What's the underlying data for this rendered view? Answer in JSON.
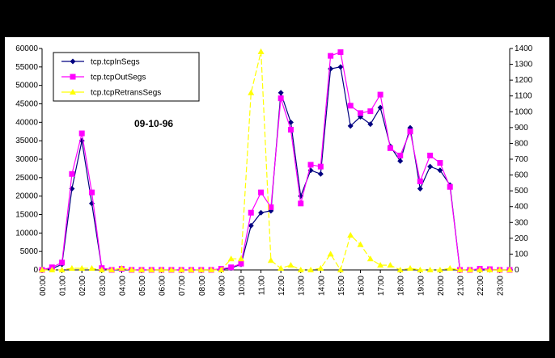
{
  "chart_data": {
    "type": "line",
    "annotation": "09-10-96",
    "x": [
      "00:00",
      "00:30",
      "01:00",
      "01:30",
      "02:00",
      "02:30",
      "03:00",
      "03:30",
      "04:00",
      "04:30",
      "05:00",
      "05:30",
      "06:00",
      "06:30",
      "07:00",
      "07:30",
      "08:00",
      "08:30",
      "09:00",
      "09:30",
      "10:00",
      "10:30",
      "11:00",
      "11:30",
      "12:00",
      "12:30",
      "13:00",
      "13:30",
      "14:00",
      "14:30",
      "15:00",
      "15:30",
      "16:00",
      "16:30",
      "17:00",
      "17:30",
      "18:00",
      "18:30",
      "19:00",
      "19:30",
      "20:00",
      "20:30",
      "21:00",
      "21:30",
      "22:00",
      "22:30",
      "23:00",
      "23:30"
    ],
    "x_tick_labels": [
      "00:00",
      "01:00",
      "02:00",
      "03:00",
      "04:00",
      "05:00",
      "06:00",
      "07:00",
      "08:00",
      "09:00",
      "10:00",
      "11:00",
      "12:00",
      "13:00",
      "14:00",
      "15:00",
      "16:00",
      "17:00",
      "18:00",
      "19:00",
      "20:00",
      "21:00",
      "22:00",
      "23:00"
    ],
    "y_left_ticks": [
      "0",
      "5000",
      "10000",
      "15000",
      "20000",
      "25000",
      "30000",
      "35000",
      "40000",
      "45000",
      "50000",
      "55000",
      "60000"
    ],
    "y_right_ticks": [
      "0",
      "100",
      "200",
      "300",
      "400",
      "500",
      "600",
      "700",
      "800",
      "900",
      "1000",
      "1100",
      "1200",
      "1300",
      "1400"
    ],
    "ylim": [
      0,
      60000
    ],
    "ylim_right": [
      0,
      1400
    ],
    "grid": false,
    "legend_position": "top-left",
    "series": [
      {
        "name": "tcp.tcpInSegs",
        "axis": "left",
        "color": "#000080",
        "marker": "diamond",
        "values": [
          0,
          300,
          1500,
          22000,
          35000,
          18000,
          500,
          0,
          200,
          0,
          0,
          0,
          0,
          0,
          0,
          0,
          0,
          0,
          200,
          500,
          1500,
          12000,
          15500,
          16000,
          48000,
          40000,
          20000,
          27000,
          26000,
          54500,
          55000,
          39000,
          41500,
          39500,
          44000,
          33500,
          29500,
          38500,
          22000,
          28000,
          27000,
          23000,
          0,
          0,
          0,
          0,
          0,
          0
        ]
      },
      {
        "name": "tcp.tcpOutSegs",
        "axis": "left",
        "color": "#ff00ff",
        "marker": "square",
        "values": [
          0,
          700,
          2000,
          26000,
          37000,
          21000,
          500,
          0,
          300,
          0,
          0,
          0,
          0,
          0,
          0,
          0,
          0,
          0,
          300,
          700,
          1700,
          15500,
          21000,
          17000,
          46500,
          38000,
          18000,
          28500,
          28000,
          58000,
          59000,
          44500,
          42500,
          43000,
          47500,
          33000,
          31000,
          37500,
          24000,
          31000,
          29000,
          22500,
          0,
          0,
          300,
          200,
          0,
          0
        ]
      },
      {
        "name": "tcp.tcpRetransSegs",
        "axis": "right",
        "color": "#ffff00",
        "marker": "triangle",
        "values": [
          0,
          0,
          0,
          10,
          10,
          10,
          0,
          0,
          10,
          0,
          0,
          0,
          0,
          0,
          0,
          0,
          0,
          0,
          0,
          70,
          70,
          1120,
          1380,
          60,
          10,
          30,
          0,
          0,
          10,
          100,
          0,
          220,
          160,
          70,
          30,
          30,
          0,
          10,
          0,
          0,
          0,
          10,
          0,
          0,
          0,
          0,
          0,
          0
        ]
      }
    ]
  },
  "colors": {
    "background": "#000000",
    "plot_area": "#ffffff"
  }
}
